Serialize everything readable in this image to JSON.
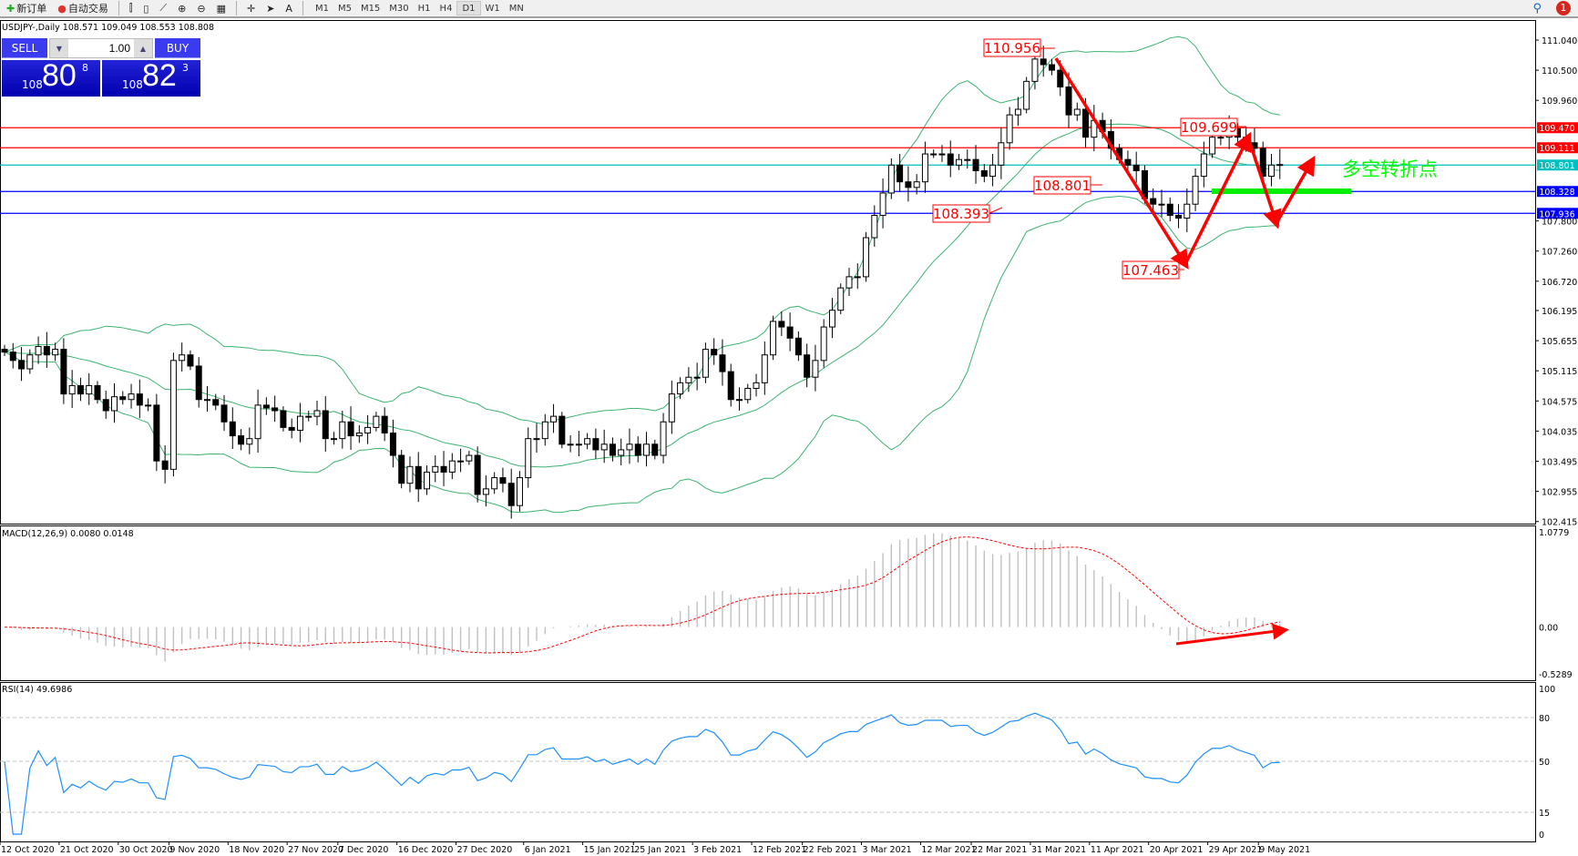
{
  "toolbar": {
    "new_order": "新订单",
    "auto_trading": "自动交易",
    "timeframes": [
      "M1",
      "M5",
      "M15",
      "M30",
      "H1",
      "H4",
      "D1",
      "W1",
      "MN"
    ],
    "active_timeframe": "D1",
    "notification_count": "1"
  },
  "chart": {
    "title": "USDJPY-,Daily  108.571 109.049 108.553 108.808",
    "trade_panel": {
      "sell_label": "SELL",
      "buy_label": "BUY",
      "lot": "1.00",
      "sell_price": {
        "prefix": "108",
        "big": "80",
        "sup": "8"
      },
      "buy_price": {
        "prefix": "108",
        "big": "82",
        "sup": "3"
      }
    },
    "annotation_text": "多空转折点",
    "colors": {
      "up_candle": "#ffffff",
      "down_candle": "#000000",
      "bands": "#3cb371",
      "resistance": "#ff0000",
      "pivot": "#00c0c0",
      "support": "#0000ff",
      "annotation": "#ff0000",
      "turn_text": "#00ff00",
      "macd_signal": "#ff0000",
      "rsi": "#1e90ff"
    }
  },
  "chart_data": [
    {
      "type": "candlestick",
      "name": "USDJPY-,Daily",
      "start_date": "2020-10-12",
      "closes": [
        105.45,
        105.3,
        105.15,
        105.4,
        105.55,
        105.4,
        105.5,
        104.7,
        104.85,
        104.7,
        104.85,
        104.6,
        104.4,
        104.65,
        104.6,
        104.7,
        104.5,
        104.5,
        103.5,
        103.35,
        105.3,
        105.4,
        105.2,
        104.6,
        104.6,
        104.5,
        104.2,
        103.95,
        103.8,
        103.9,
        104.5,
        104.45,
        104.4,
        104.1,
        104.05,
        104.3,
        104.3,
        104.4,
        103.9,
        103.9,
        104.2,
        103.95,
        104.0,
        104.1,
        104.3,
        104.0,
        103.6,
        103.1,
        103.4,
        103.0,
        103.3,
        103.4,
        103.3,
        103.5,
        103.5,
        103.6,
        102.9,
        103.0,
        103.2,
        103.1,
        102.7,
        103.2,
        103.9,
        103.9,
        104.2,
        104.3,
        103.8,
        103.8,
        103.8,
        103.9,
        103.7,
        103.8,
        103.6,
        103.7,
        103.8,
        103.6,
        103.8,
        103.6,
        104.2,
        104.7,
        104.9,
        105.0,
        105.0,
        105.5,
        105.4,
        105.1,
        104.6,
        104.6,
        104.8,
        104.9,
        105.4,
        106.0,
        105.9,
        105.7,
        105.4,
        105.0,
        105.3,
        105.9,
        106.2,
        106.6,
        106.8,
        106.8,
        107.5,
        107.9,
        108.3,
        108.8,
        108.5,
        108.4,
        108.5,
        109.0,
        109.0,
        109.0,
        108.8,
        108.9,
        108.9,
        108.7,
        108.6,
        108.8,
        109.2,
        109.7,
        109.8,
        110.3,
        110.7,
        110.6,
        110.5,
        110.2,
        109.7,
        109.8,
        109.3,
        109.6,
        109.4,
        109.1,
        108.9,
        108.8,
        108.7,
        108.2,
        108.1,
        108.1,
        107.9,
        107.85,
        108.1,
        108.6,
        109.0,
        109.3,
        109.3,
        109.45,
        109.3,
        109.2,
        109.1,
        108.6,
        108.8,
        108.81
      ],
      "price_ticks": [
        "111.040",
        "110.500",
        "109.960",
        "107.800",
        "107.260",
        "106.720",
        "106.195",
        "105.655",
        "105.115",
        "104.575",
        "104.035",
        "103.495",
        "102.955",
        "102.415"
      ],
      "ylim": [
        102.415,
        111.25
      ],
      "indicators": "Bollinger Bands",
      "horizontal_lines": [
        {
          "price": 109.47,
          "label": "109.470",
          "color": "#ff0000"
        },
        {
          "price": 109.111,
          "label": "109.111",
          "color": "#ff0000"
        },
        {
          "price": 108.801,
          "label": "108.801",
          "color": "#00c0c0"
        },
        {
          "price": 108.328,
          "label": "108.328",
          "color": "#0000ff"
        },
        {
          "price": 107.936,
          "label": "107.936",
          "color": "#0000ff"
        }
      ],
      "price_labels": [
        "110.956",
        "108.393",
        "108.801",
        "109.699",
        "107.463"
      ]
    },
    {
      "type": "bar",
      "name": "MACD(12,26,9) 0.0080 0.0148",
      "ylim": [
        -0.5289,
        1.0779
      ],
      "ticks": [
        "1.0779",
        "0.00",
        "-0.5289"
      ]
    },
    {
      "type": "line",
      "name": "RSI(14) 49.6986",
      "ylim": [
        0,
        100
      ],
      "ticks": [
        "100",
        "80",
        "50",
        "15",
        "0"
      ],
      "levels": [
        80,
        50,
        15
      ]
    }
  ],
  "date_labels": [
    "12 Oct 2020",
    "21 Oct 2020",
    "30 Oct 2020",
    "9 Nov 2020",
    "18 Nov 2020",
    "27 Nov 2020",
    "7 Dec 2020",
    "16 Dec 2020",
    "27 Dec 2020",
    "6 Jan 2021",
    "15 Jan 2021",
    "25 Jan 2021",
    "3 Feb 2021",
    "12 Feb 2021",
    "22 Feb 2021",
    "3 Mar 2021",
    "12 Mar 2021",
    "22 Mar 2021",
    "31 Mar 2021",
    "11 Apr 2021",
    "20 Apr 2021",
    "29 Apr 2021",
    "9 May 2021"
  ]
}
